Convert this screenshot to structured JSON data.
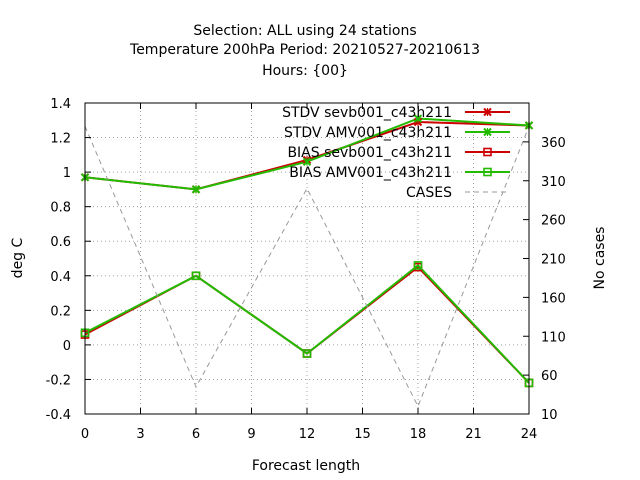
{
  "chart_data": {
    "type": "line",
    "title_lines": [
      "Selection: ALL using    24 stations",
      "Temperature 200hPa   Period: 20210527-20210613",
      "Hours: {00}"
    ],
    "xlabel": "Forecast length",
    "ylabel": "deg C",
    "y2label": "No cases",
    "x": [
      0,
      6,
      12,
      18,
      24
    ],
    "xlim": [
      0,
      24
    ],
    "xticks": [
      0,
      3,
      6,
      9,
      12,
      15,
      18,
      21,
      24
    ],
    "ylim": [
      -0.4,
      1.4
    ],
    "yticks": [
      -0.4,
      -0.2,
      0,
      0.2,
      0.4,
      0.6,
      0.8,
      1,
      1.2,
      1.4
    ],
    "y2lim": [
      10,
      410
    ],
    "y2ticks": [
      10,
      60,
      110,
      160,
      210,
      260,
      310,
      360
    ],
    "grid": true,
    "legend_position": "top-right",
    "series": [
      {
        "name": "STDV sevb001_c43h211",
        "axis": "y",
        "values": [
          0.97,
          0.9,
          1.07,
          1.29,
          1.27
        ],
        "color": "#cc0000",
        "marker": "x",
        "dash": false
      },
      {
        "name": "STDV AMV001_c43h211",
        "axis": "y",
        "values": [
          0.97,
          0.9,
          1.06,
          1.31,
          1.27
        ],
        "color": "#22bb00",
        "marker": "x",
        "dash": false
      },
      {
        "name": "BIAS sevb001_c43h211",
        "axis": "y",
        "values": [
          0.06,
          0.4,
          -0.05,
          0.45,
          -0.22
        ],
        "color": "#cc0000",
        "marker": "square",
        "dash": false
      },
      {
        "name": "BIAS AMV001_c43h211",
        "axis": "y",
        "values": [
          0.07,
          0.4,
          -0.05,
          0.46,
          -0.22
        ],
        "color": "#22bb00",
        "marker": "square",
        "dash": false
      },
      {
        "name": "CASES",
        "axis": "y2",
        "values": [
          380,
          45,
          300,
          20,
          380
        ],
        "color": "#999999",
        "marker": "none",
        "dash": true
      }
    ]
  }
}
